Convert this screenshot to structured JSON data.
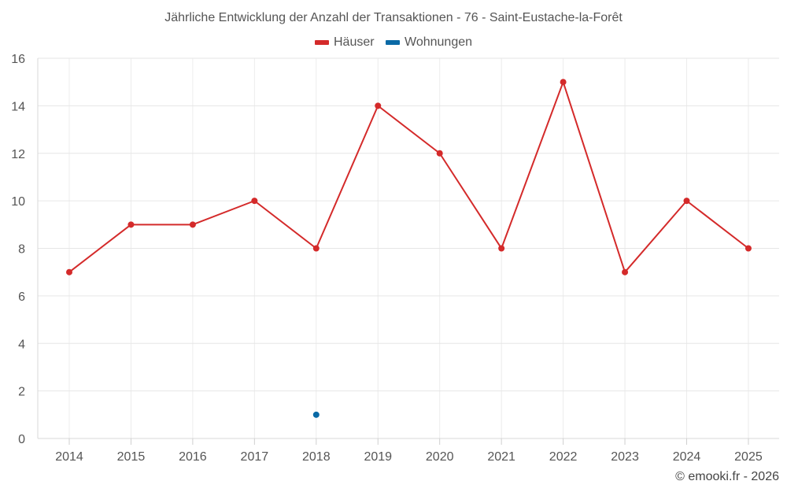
{
  "chart_data": {
    "type": "line",
    "title": "Jährliche Entwicklung der Anzahl der Transaktionen - 76 - Saint-Eustache-la-Forêt",
    "categories": [
      "2014",
      "2015",
      "2016",
      "2017",
      "2018",
      "2019",
      "2020",
      "2021",
      "2022",
      "2023",
      "2024",
      "2025"
    ],
    "series": [
      {
        "name": "Häuser",
        "color": "#d42a2a",
        "values": [
          7,
          9,
          9,
          10,
          8,
          14,
          12,
          8,
          15,
          7,
          10,
          8
        ]
      },
      {
        "name": "Wohnungen",
        "color": "#0a6aa6",
        "values": [
          null,
          null,
          null,
          null,
          1,
          null,
          null,
          null,
          null,
          null,
          null,
          null
        ]
      }
    ],
    "ylim": [
      0,
      16
    ],
    "yticks": [
      0,
      2,
      4,
      6,
      8,
      10,
      12,
      14,
      16
    ],
    "grid": true,
    "legend_position": "top-center"
  },
  "credit": "© emooki.fr - 2026"
}
